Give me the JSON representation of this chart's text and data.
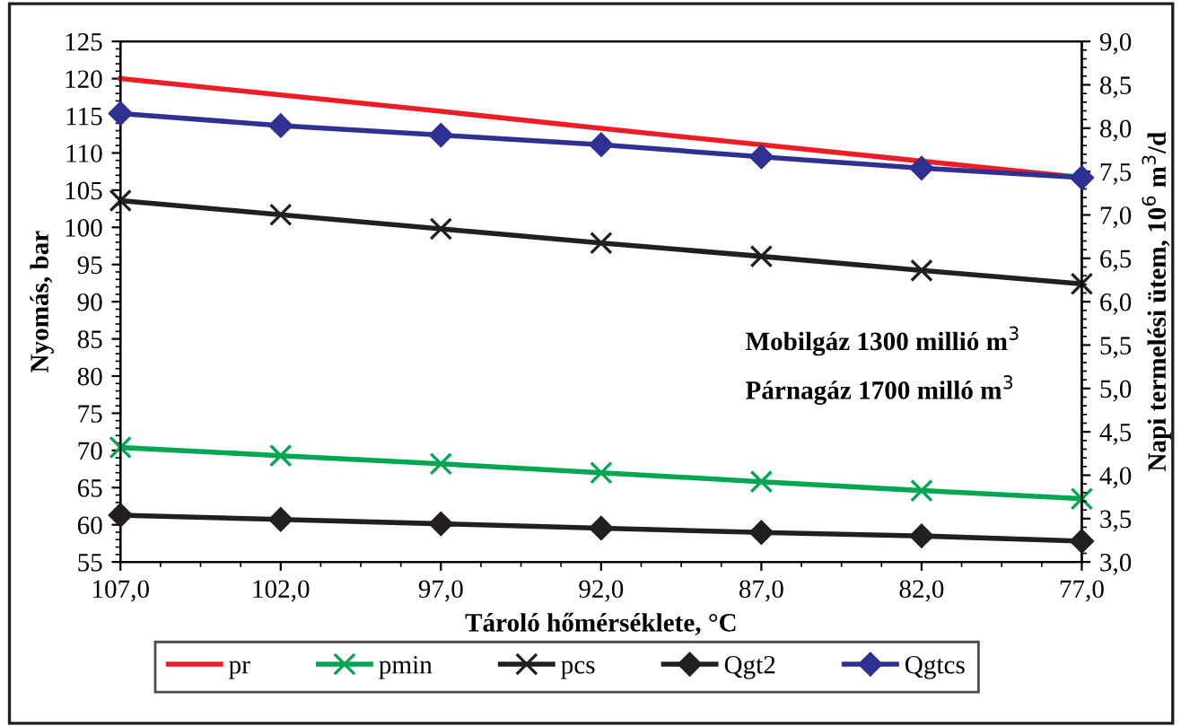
{
  "chart_data": {
    "type": "line",
    "xlabel": "Tároló hőmérséklete, °C",
    "ylabel": "Nyomás, bar",
    "y2label": "Napi termelési ütem, 10$^{6}$ m$^{3}$/d",
    "categories": [
      "107,0",
      "102,0",
      "97,0",
      "92,0",
      "87,0",
      "82,0",
      "77,0"
    ],
    "series": [
      {
        "name": "pr",
        "color": "#ee1c25",
        "marker": "none",
        "values": [
          120.0,
          117.8,
          115.6,
          113.3,
          111.1,
          108.9,
          106.7
        ]
      },
      {
        "name": "pmin",
        "color": "#00a651",
        "marker": "cross",
        "values": [
          70.4,
          69.3,
          68.2,
          67.0,
          65.8,
          64.6,
          63.5
        ]
      },
      {
        "name": "pcs",
        "color": "#231f20",
        "marker": "cross",
        "values": [
          103.6,
          101.7,
          99.8,
          97.9,
          96.1,
          94.2,
          92.4
        ]
      },
      {
        "name": "Qgt2",
        "color": "#231f20",
        "marker": "diamond",
        "axis": "y2",
        "values": [
          3.54,
          3.49,
          3.44,
          3.39,
          3.34,
          3.3,
          3.24
        ]
      },
      {
        "name": "Qgtcs",
        "color": "#2e3192",
        "marker": "diamond",
        "axis": "y2",
        "values": [
          8.17,
          8.03,
          7.92,
          7.81,
          7.67,
          7.54,
          7.43
        ]
      }
    ],
    "ylim": [
      55,
      125
    ],
    "yticks": [
      55,
      60,
      65,
      70,
      75,
      80,
      85,
      90,
      95,
      100,
      105,
      110,
      115,
      120,
      125
    ],
    "y2lim": [
      3.0,
      9.0
    ],
    "y2ticks": [
      {
        "value": 3.0,
        "label": "3,0"
      },
      {
        "value": 3.5,
        "label": "3,5"
      },
      {
        "value": 4.0,
        "label": "4,0"
      },
      {
        "value": 4.5,
        "label": "4,5"
      },
      {
        "value": 5.0,
        "label": "5,0"
      },
      {
        "value": 5.5,
        "label": "5,5"
      },
      {
        "value": 6.0,
        "label": "6,0"
      },
      {
        "value": 6.5,
        "label": "6,5"
      },
      {
        "value": 7.0,
        "label": "7,0"
      },
      {
        "value": 7.5,
        "label": "7,5"
      },
      {
        "value": 8.0,
        "label": "8,0"
      },
      {
        "value": 8.5,
        "label": "8,5"
      },
      {
        "value": 9.0,
        "label": "9,0"
      }
    ],
    "annotations": [
      "Mobilgáz 1300 millió m$^{3}$",
      "Párnagáz 1700 milló m$^{3}$"
    ],
    "grid": false,
    "legend": "bottom",
    "line_style": "solid"
  }
}
